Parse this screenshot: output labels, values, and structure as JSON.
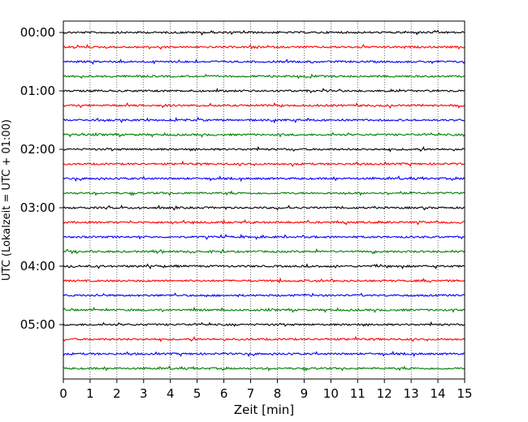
{
  "chart_data": {
    "type": "line",
    "title": "",
    "xlabel": "Zeit  [min]",
    "ylabel": "UTC (Lokalzeit = UTC + 01:00)",
    "xlim": [
      0,
      15
    ],
    "x_ticks": [
      "0",
      "1",
      "2",
      "3",
      "4",
      "5",
      "6",
      "7",
      "8",
      "9",
      "10",
      "11",
      "12",
      "13",
      "14",
      "15"
    ],
    "y_ticks": [
      "00:00",
      "01:00",
      "02:00",
      "03:00",
      "04:00",
      "05:00"
    ],
    "grid": "vertical dotted at each minute",
    "trace_interval_minutes": 15,
    "trace_colors": [
      "#000000",
      "#ff0000",
      "#0000ff",
      "#008000"
    ],
    "trace_count": 24
  }
}
